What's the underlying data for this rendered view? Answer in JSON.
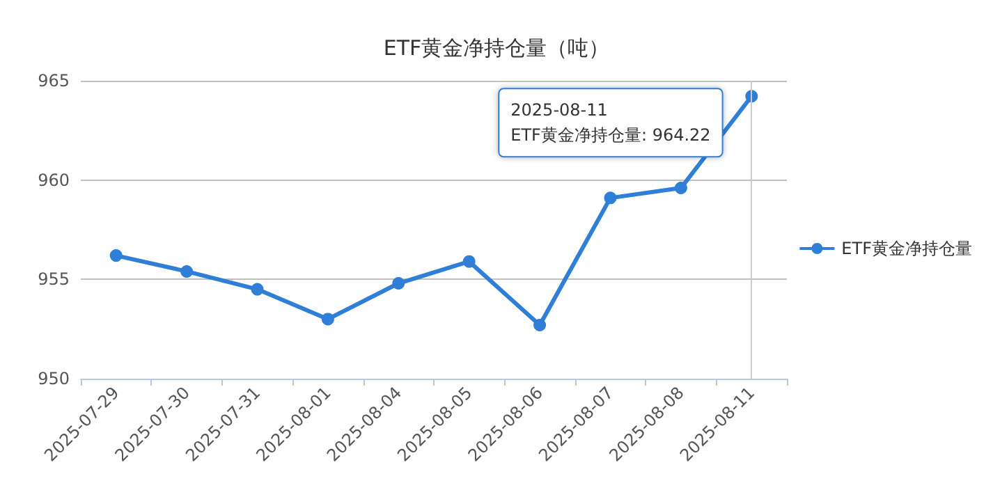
{
  "chart_data": {
    "type": "line",
    "title": "ETF黄金净持仓量（吨）",
    "categories": [
      "2025-07-29",
      "2025-07-30",
      "2025-07-31",
      "2025-08-01",
      "2025-08-04",
      "2025-08-05",
      "2025-08-06",
      "2025-08-07",
      "2025-08-08",
      "2025-08-11"
    ],
    "series": [
      {
        "name": "ETF黄金净持仓量",
        "color": "#2f7ed8",
        "values": [
          956.2,
          955.4,
          954.5,
          953.0,
          954.8,
          955.9,
          952.7,
          959.1,
          959.6,
          964.22
        ]
      }
    ],
    "ylim": [
      950,
      965
    ],
    "yticks": [
      950,
      955,
      960,
      965
    ],
    "grid": "y",
    "legend": "right",
    "marker": "circle",
    "ref_lines": [
      {
        "axis": "x",
        "value": "2025-08-11",
        "color": "#cccccc"
      }
    ],
    "annotations": [
      {
        "text": "2025-08-11\nETF黄金净持仓量: 964.22",
        "x": "2025-08-11",
        "y": 964.22
      }
    ]
  }
}
